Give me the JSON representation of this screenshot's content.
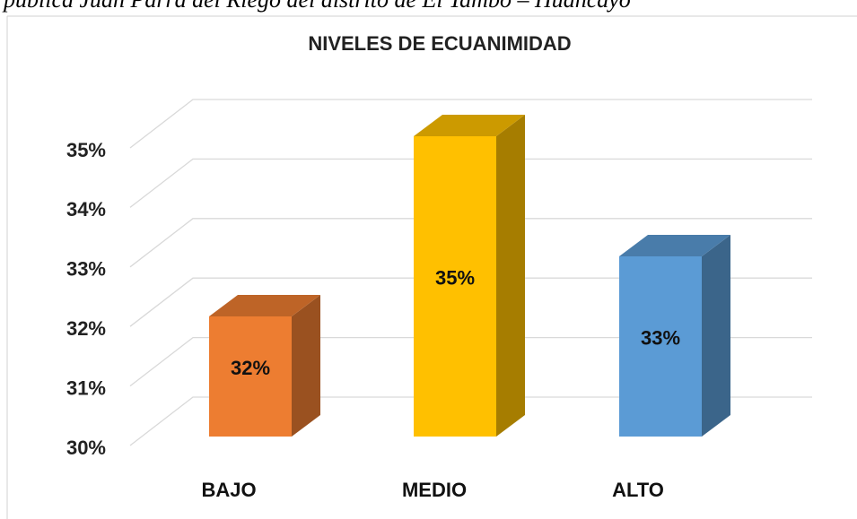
{
  "caption": "pública Juan Parra del Riego del distrito de El Tambo – Huancayo",
  "chart_data": {
    "type": "bar3d",
    "title": "NIVELES DE ECUANIMIDAD",
    "categories": [
      "BAJO",
      "MEDIO",
      "ALTO"
    ],
    "values": [
      32,
      35,
      33
    ],
    "value_labels": [
      "32%",
      "35%",
      "33%"
    ],
    "colors": [
      "#ed7d31",
      "#ffc000",
      "#5b9bd5"
    ],
    "ylim": [
      30,
      35
    ],
    "yticks": [
      {
        "value": 30,
        "label": "30%"
      },
      {
        "value": 31,
        "label": "31%"
      },
      {
        "value": 32,
        "label": "32%"
      },
      {
        "value": 33,
        "label": "33%"
      },
      {
        "value": 34,
        "label": "34%"
      },
      {
        "value": 35,
        "label": "35%"
      }
    ],
    "grid": true
  }
}
